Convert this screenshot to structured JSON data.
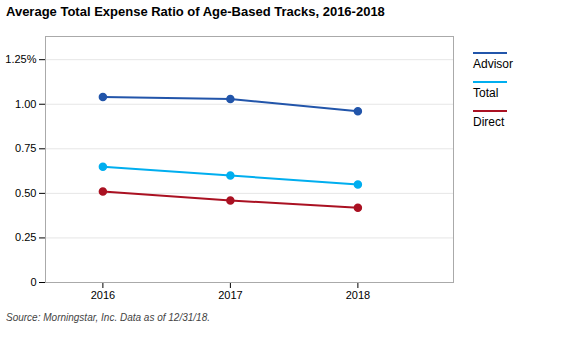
{
  "chart_data": {
    "type": "line",
    "title": "Average Total Expense Ratio of Age-Based Tracks, 2016-2018",
    "source": "Source: Morningstar, Inc. Data as of 12/31/18.",
    "x": [
      2016,
      2017,
      2018
    ],
    "series": [
      {
        "name": "Advisor",
        "color": "#2255aa",
        "marker": "circle",
        "values": [
          1.04,
          1.03,
          0.96
        ]
      },
      {
        "name": "Total",
        "color": "#00aeef",
        "marker": "circle",
        "values": [
          0.65,
          0.6,
          0.55
        ]
      },
      {
        "name": "Direct",
        "color": "#aa1122",
        "marker": "circle",
        "values": [
          0.51,
          0.46,
          0.42
        ]
      }
    ],
    "xlim": [
      2015.55,
      2018.75
    ],
    "xticks": [
      2016,
      2017,
      2018
    ],
    "ylim": [
      0,
      1.38
    ],
    "yticks": [
      0,
      0.25,
      {
        "value": 0.5,
        "label": "0.50"
      },
      0.75,
      {
        "value": 1.0,
        "label": "1.00"
      },
      {
        "value": 1.25,
        "label": "1.25%"
      }
    ],
    "grid": true,
    "legend": "right"
  }
}
